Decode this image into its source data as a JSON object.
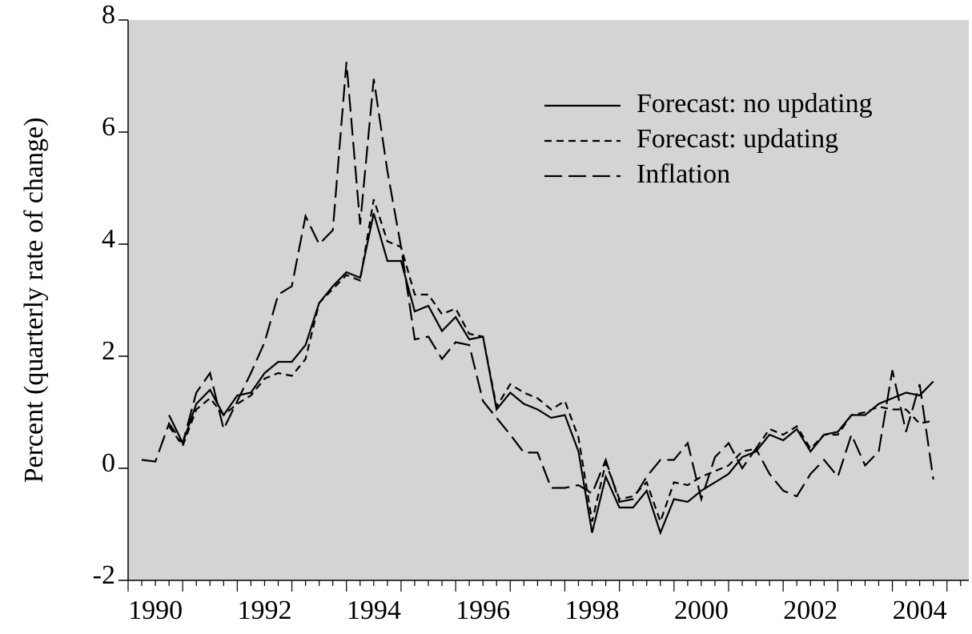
{
  "chart_data": {
    "type": "line",
    "y_label": "Percent (quarterly rate of change)",
    "xlim": [
      1990,
      2005.4
    ],
    "ylim": [
      -2,
      8
    ],
    "xticks": [
      {
        "value": 1990.5,
        "label": "1990"
      },
      {
        "value": 1992.5,
        "label": "1992"
      },
      {
        "value": 1994.5,
        "label": "1994"
      },
      {
        "value": 1996.5,
        "label": "1996"
      },
      {
        "value": 1998.5,
        "label": "1998"
      },
      {
        "value": 2000.5,
        "label": "2000"
      },
      {
        "value": 2002.5,
        "label": "2002"
      },
      {
        "value": 2004.5,
        "label": "2004"
      }
    ],
    "yticks": [
      -2,
      0,
      2,
      4,
      6,
      8
    ],
    "legend": "top-right",
    "x": [
      1990.25,
      1990.5,
      1990.75,
      1991,
      1991.25,
      1991.5,
      1991.75,
      1992,
      1992.25,
      1992.5,
      1992.75,
      1993,
      1993.25,
      1993.5,
      1993.75,
      1994,
      1994.25,
      1994.5,
      1994.75,
      1995,
      1995.25,
      1995.5,
      1995.75,
      1996,
      1996.25,
      1996.5,
      1996.75,
      1997,
      1997.25,
      1997.5,
      1997.75,
      1998,
      1998.25,
      1998.5,
      1998.75,
      1999,
      1999.25,
      1999.5,
      1999.75,
      2000,
      2000.25,
      2000.5,
      2000.75,
      2001,
      2001.25,
      2001.5,
      2001.75,
      2002,
      2002.25,
      2002.5,
      2002.75,
      2003,
      2003.25,
      2003.5,
      2003.75,
      2004,
      2004.25,
      2004.5,
      2004.75
    ],
    "series": [
      {
        "name": "Forecast: no updating",
        "color": "#000000",
        "dash": "solid",
        "values": [
          null,
          null,
          0.95,
          0.45,
          1.15,
          1.4,
          0.95,
          1.3,
          1.35,
          1.7,
          1.9,
          1.9,
          2.2,
          2.95,
          3.25,
          3.5,
          3.4,
          4.55,
          3.7,
          3.7,
          2.8,
          2.9,
          2.45,
          2.7,
          2.3,
          2.35,
          1.05,
          1.35,
          1.15,
          1.05,
          0.9,
          0.95,
          0.3,
          -1.15,
          -0.15,
          -0.7,
          -0.7,
          -0.4,
          -1.15,
          -0.55,
          -0.6,
          -0.4,
          -0.25,
          -0.1,
          0.2,
          0.3,
          0.6,
          0.5,
          0.7,
          0.3,
          0.6,
          0.65,
          0.95,
          0.95,
          1.15,
          1.25,
          1.35,
          1.3,
          1.55
        ]
      },
      {
        "name": "Forecast: updating",
        "color": "#000000",
        "dash": "short",
        "values": [
          null,
          null,
          0.75,
          0.4,
          1.05,
          1.25,
          0.95,
          1.15,
          1.3,
          1.6,
          1.7,
          1.65,
          1.95,
          2.95,
          3.2,
          3.45,
          3.35,
          4.8,
          4.05,
          3.95,
          3.1,
          3.1,
          2.75,
          2.85,
          2.4,
          2.35,
          1.1,
          1.5,
          1.35,
          1.25,
          1.05,
          1.2,
          0.55,
          -0.95,
          0.1,
          -0.55,
          -0.5,
          -0.25,
          -0.95,
          -0.25,
          -0.3,
          -0.15,
          -0.05,
          0.05,
          0.3,
          0.35,
          0.7,
          0.6,
          0.75,
          0.35,
          0.6,
          0.6,
          0.95,
          1.0,
          1.1,
          1.05,
          1.05,
          0.8,
          0.85
        ]
      },
      {
        "name": "Inflation",
        "color": "#000000",
        "dash": "long",
        "values": [
          0.15,
          0.12,
          0.8,
          0.45,
          1.35,
          1.7,
          0.7,
          1.2,
          1.7,
          2.25,
          3.1,
          3.25,
          4.5,
          4.0,
          4.25,
          7.25,
          4.35,
          6.95,
          5.3,
          3.95,
          2.3,
          2.35,
          1.95,
          2.25,
          2.2,
          1.2,
          0.9,
          0.6,
          0.28,
          0.28,
          -0.35,
          -0.35,
          -0.3,
          -0.45,
          0.15,
          -0.6,
          -0.55,
          -0.15,
          0.15,
          0.15,
          0.45,
          -0.55,
          0.2,
          0.45,
          0.0,
          0.35,
          -0.1,
          -0.4,
          -0.5,
          -0.1,
          0.15,
          -0.15,
          0.6,
          0.05,
          0.3,
          1.75,
          0.65,
          1.5,
          -0.2
        ]
      }
    ]
  }
}
